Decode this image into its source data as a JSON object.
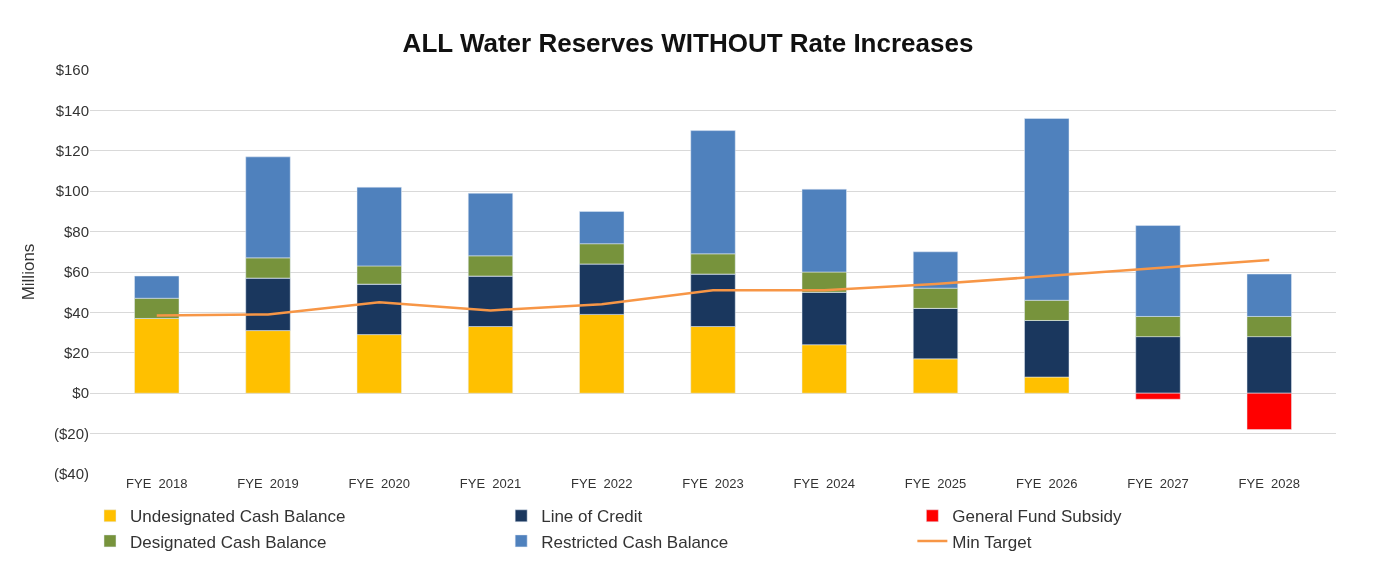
{
  "chart_data": {
    "type": "bar",
    "title": "ALL Water Reserves WITHOUT Rate Increases",
    "ylabel": "Millions",
    "categories": [
      "FYE  2018",
      "FYE  2019",
      "FYE  2020",
      "FYE  2021",
      "FYE  2022",
      "FYE  2023",
      "FYE  2024",
      "FYE  2025",
      "FYE  2026",
      "FYE  2027",
      "FYE  2028"
    ],
    "stacked": true,
    "series": [
      {
        "name": "Undesignated Cash Balance",
        "color": "#ffc000",
        "values": [
          37,
          31,
          29,
          33,
          39,
          33,
          24,
          17,
          8,
          0,
          0
        ]
      },
      {
        "name": "Line of Credit",
        "color": "#1a375e",
        "values": [
          0,
          26,
          25,
          25,
          25,
          26,
          26,
          25,
          28,
          28,
          28
        ]
      },
      {
        "name": "General Fund Subsidy",
        "color": "#ff0000",
        "values": [
          0,
          0,
          0,
          0,
          0,
          0,
          0,
          0,
          0,
          -3,
          -18
        ]
      },
      {
        "name": "Designated Cash Balance",
        "color": "#77933c",
        "values": [
          10,
          10,
          9,
          10,
          10,
          10,
          10,
          10,
          10,
          10,
          10
        ]
      },
      {
        "name": "Restricted Cash Balance",
        "color": "#4f81bd",
        "values": [
          11,
          50,
          39,
          31,
          16,
          61,
          41,
          18,
          90,
          45,
          21
        ]
      },
      {
        "name": "Min Target",
        "type": "line",
        "color": "#f79646",
        "values": [
          38.5,
          39,
          45,
          41,
          44,
          51,
          51,
          54,
          58,
          62,
          66
        ]
      }
    ],
    "ylim": [
      -40,
      160
    ],
    "yticks": [
      {
        "value": -40,
        "label": "($40)"
      },
      {
        "value": -20,
        "label": "($20)"
      },
      {
        "value": 0,
        "label": "$0"
      },
      {
        "value": 20,
        "label": "$20"
      },
      {
        "value": 40,
        "label": "$40"
      },
      {
        "value": 60,
        "label": "$60"
      },
      {
        "value": 80,
        "label": "$80"
      },
      {
        "value": 100,
        "label": "$100"
      },
      {
        "value": 120,
        "label": "$120"
      },
      {
        "value": 140,
        "label": "$140"
      },
      {
        "value": 160,
        "label": "$160"
      }
    ],
    "grid": "y",
    "legend": "bottom",
    "marker": "none",
    "line_style": "solid"
  }
}
